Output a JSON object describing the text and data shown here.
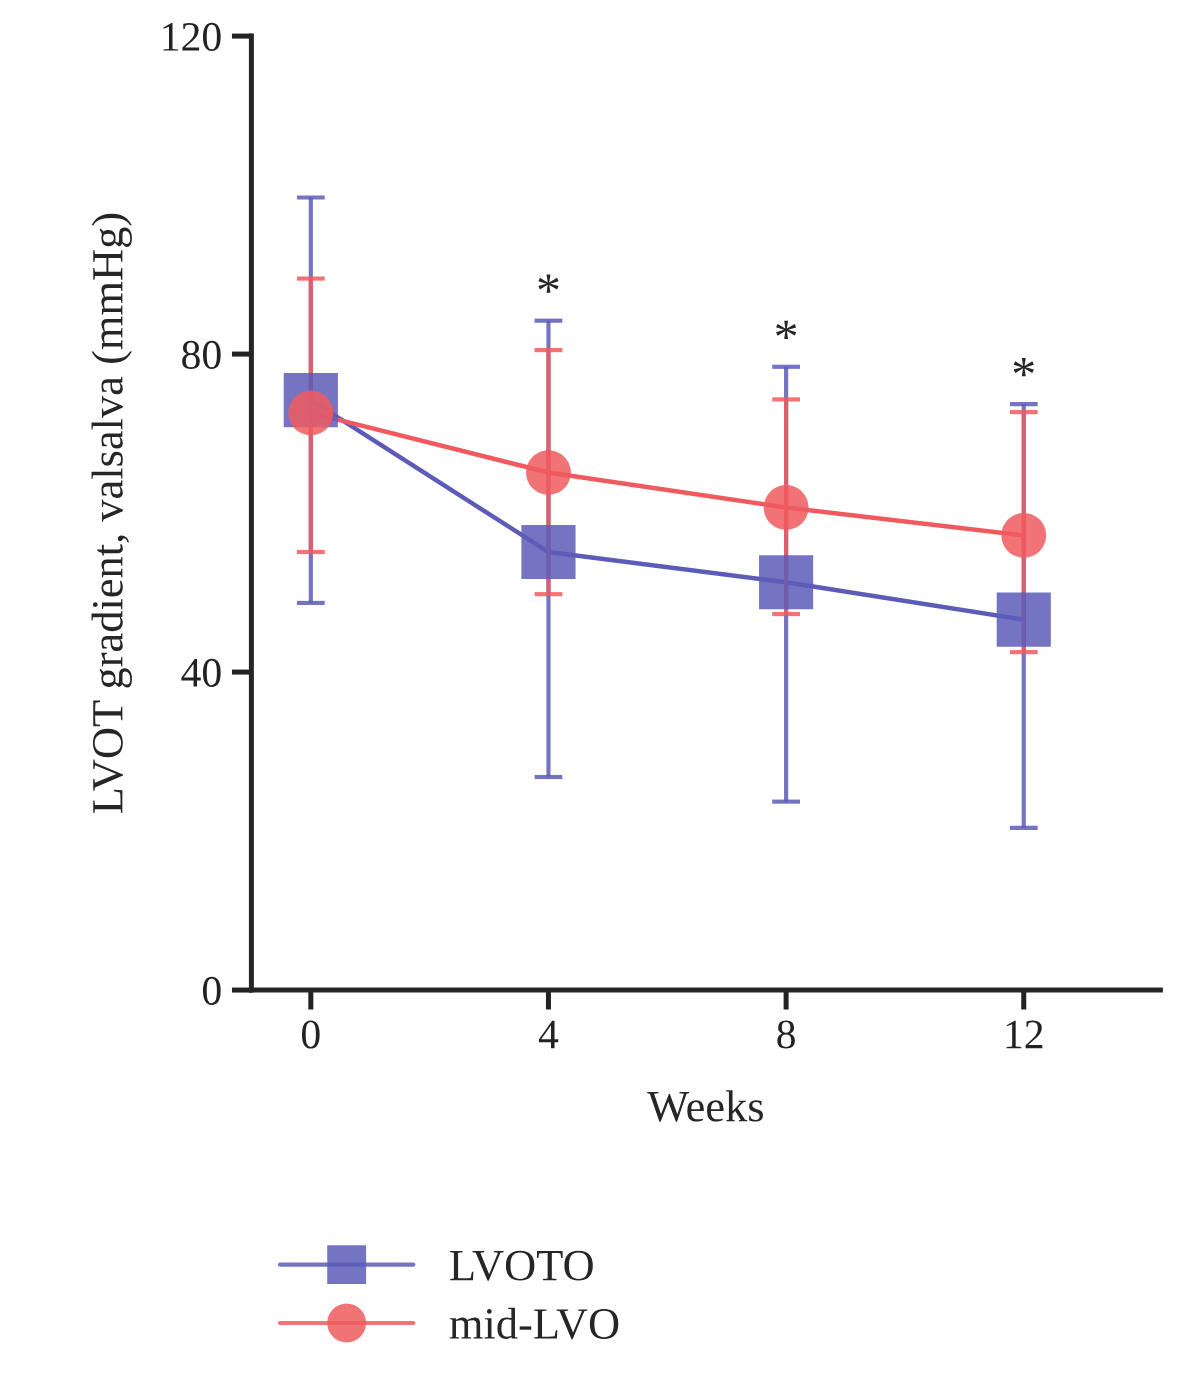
{
  "chart_data": {
    "type": "line",
    "xlabel": "Weeks",
    "ylabel": "LVOT gradient, valsalva (mmHg)",
    "x": [
      0,
      4,
      8,
      12
    ],
    "xlim": [
      -1,
      14.3
    ],
    "xticks": [
      0,
      4,
      8,
      12
    ],
    "ylim": [
      0,
      120
    ],
    "yticks": [
      0,
      40,
      80,
      120
    ],
    "series": [
      {
        "name": "LVOTO",
        "color": "#5c5cb8",
        "marker": "square",
        "values": [
          74.2,
          55.1,
          51.3,
          46.6
        ],
        "errors": [
          [
            48.7,
            99.7
          ],
          [
            26.8,
            84.2
          ],
          [
            23.7,
            78.4
          ],
          [
            20.4,
            73.7
          ]
        ]
      },
      {
        "name": "mid-LVO",
        "color": "#f05a5e",
        "marker": "circle",
        "values": [
          72.6,
          65.1,
          60.7,
          57.2
        ],
        "errors": [
          [
            55.1,
            89.5
          ],
          [
            49.8,
            80.5
          ],
          [
            47.3,
            74.3
          ],
          [
            42.5,
            72.7
          ]
        ]
      }
    ],
    "annotations": [
      {
        "text": "*",
        "x": 4,
        "y": 84.2
      },
      {
        "text": "*",
        "x": 8,
        "y": 78.4
      },
      {
        "text": "*",
        "x": 12,
        "y": 73.7
      }
    ],
    "grid": false,
    "legend": "bottom left",
    "line_style": "solid"
  }
}
